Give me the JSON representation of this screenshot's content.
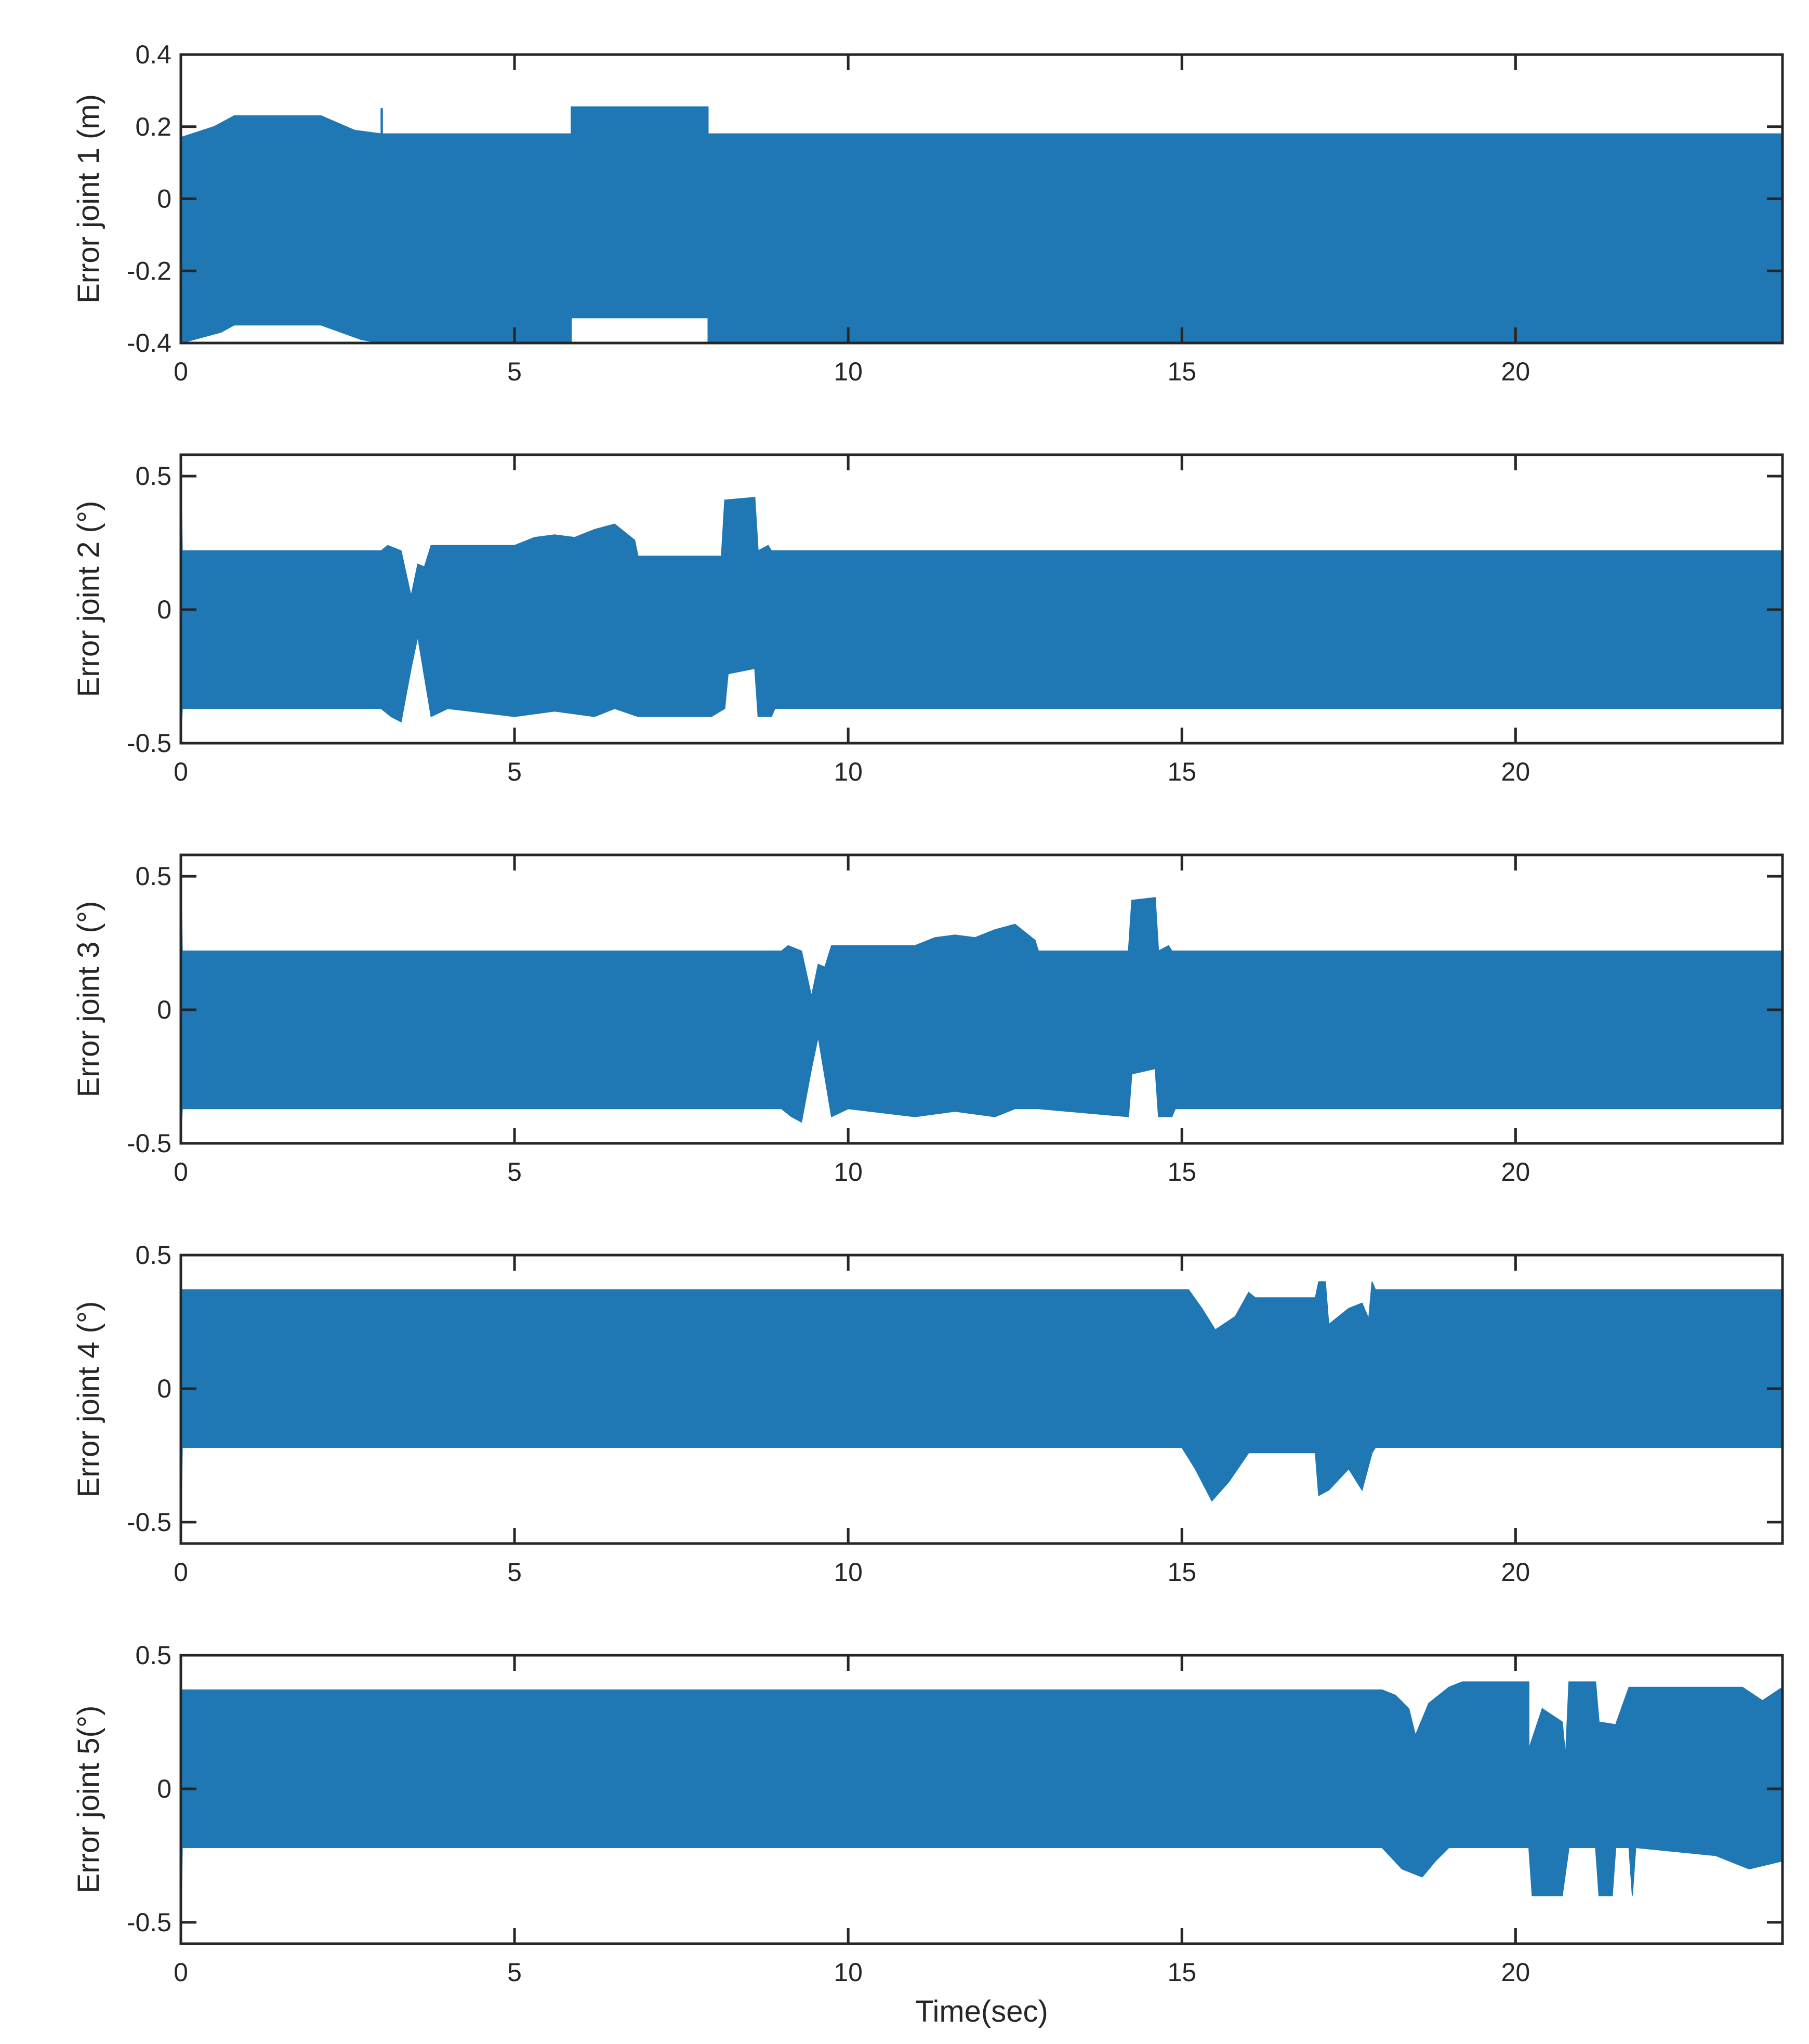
{
  "chart_data": [
    {
      "type": "area",
      "ylabel": "Error joint 1 (m)",
      "xlabel": "",
      "xlim": [
        0,
        24
      ],
      "ylim": [
        -0.4,
        0.4
      ],
      "xticks": [
        0,
        5,
        10,
        15,
        20
      ],
      "yticks": [
        0.4,
        0.2,
        0,
        -0.2,
        -0.4
      ],
      "ytick_labels": [
        "0.4",
        "0.2",
        "0",
        "-0.2",
        "-0.4"
      ],
      "grid": false,
      "color": "#1f77b4",
      "series": [
        {
          "upper": [
            [
              0,
              0.17
            ],
            [
              0.5,
              0.2
            ],
            [
              0.8,
              0.23
            ],
            [
              2.1,
              0.23
            ],
            [
              2.6,
              0.19
            ],
            [
              3.0,
              0.18
            ],
            [
              3.0,
              0.25
            ],
            [
              3.02,
              0.25
            ],
            [
              3.02,
              0.18
            ],
            [
              5.85,
              0.18
            ],
            [
              5.85,
              0.255
            ],
            [
              7.9,
              0.255
            ],
            [
              7.9,
              0.18
            ],
            [
              24,
              0.18
            ]
          ],
          "lower": [
            [
              0,
              -0.4
            ],
            [
              0.6,
              -0.37
            ],
            [
              0.8,
              -0.35
            ],
            [
              2.1,
              -0.35
            ],
            [
              2.7,
              -0.39
            ],
            [
              3.0,
              -0.4
            ],
            [
              5.85,
              -0.4
            ],
            [
              5.85,
              -0.33
            ],
            [
              7.9,
              -0.33
            ],
            [
              7.9,
              -0.4
            ],
            [
              24,
              -0.4
            ]
          ]
        }
      ]
    },
    {
      "type": "area",
      "ylabel": "Error joint 2 (°)",
      "xlabel": "",
      "xlim": [
        0,
        24
      ],
      "ylim": [
        -0.5,
        0.58
      ],
      "xticks": [
        0,
        5,
        10,
        15,
        20
      ],
      "yticks": [
        0.5,
        0,
        -0.5
      ],
      "ytick_labels": [
        "0.5",
        "0",
        "-0.5"
      ],
      "grid": false,
      "color": "#1f77b4",
      "series": [
        {
          "upper": [
            [
              0,
              0.58
            ],
            [
              0.02,
              0.22
            ],
            [
              3.0,
              0.22
            ],
            [
              3.1,
              0.24
            ],
            [
              3.3,
              0.22
            ],
            [
              3.45,
              0.05
            ],
            [
              3.55,
              0.17
            ],
            [
              3.65,
              0.16
            ],
            [
              3.75,
              0.24
            ],
            [
              5.0,
              0.24
            ],
            [
              5.3,
              0.27
            ],
            [
              5.6,
              0.28
            ],
            [
              5.9,
              0.27
            ],
            [
              6.2,
              0.3
            ],
            [
              6.5,
              0.32
            ],
            [
              6.8,
              0.26
            ],
            [
              6.85,
              0.2
            ],
            [
              7.95,
              0.2
            ],
            [
              8.1,
              0.2
            ],
            [
              8.15,
              0.41
            ],
            [
              8.6,
              0.42
            ],
            [
              8.65,
              0.22
            ],
            [
              8.8,
              0.24
            ],
            [
              8.85,
              0.22
            ],
            [
              24,
              0.22
            ]
          ],
          "lower": [
            [
              0,
              -0.5
            ],
            [
              0.02,
              -0.37
            ],
            [
              3.0,
              -0.37
            ],
            [
              3.15,
              -0.4
            ],
            [
              3.3,
              -0.42
            ],
            [
              3.45,
              -0.22
            ],
            [
              3.55,
              -0.1
            ],
            [
              3.65,
              -0.25
            ],
            [
              3.75,
              -0.4
            ],
            [
              4.0,
              -0.37
            ],
            [
              5.0,
              -0.4
            ],
            [
              5.6,
              -0.38
            ],
            [
              6.2,
              -0.4
            ],
            [
              6.5,
              -0.37
            ],
            [
              6.85,
              -0.4
            ],
            [
              7.95,
              -0.4
            ],
            [
              8.15,
              -0.37
            ],
            [
              8.2,
              -0.24
            ],
            [
              8.6,
              -0.22
            ],
            [
              8.65,
              -0.4
            ],
            [
              8.85,
              -0.4
            ],
            [
              8.9,
              -0.37
            ],
            [
              24,
              -0.37
            ]
          ]
        }
      ]
    },
    {
      "type": "area",
      "ylabel": "Error joint 3 (°)",
      "xlabel": "",
      "xlim": [
        0,
        24
      ],
      "ylim": [
        -0.5,
        0.58
      ],
      "xticks": [
        0,
        5,
        10,
        15,
        20
      ],
      "yticks": [
        0.5,
        0,
        -0.5
      ],
      "ytick_labels": [
        "0.5",
        "0",
        "-0.5"
      ],
      "grid": false,
      "color": "#1f77b4",
      "series": [
        {
          "upper": [
            [
              0,
              0.58
            ],
            [
              0.02,
              0.22
            ],
            [
              9.0,
              0.22
            ],
            [
              9.1,
              0.24
            ],
            [
              9.3,
              0.22
            ],
            [
              9.45,
              0.05
            ],
            [
              9.55,
              0.17
            ],
            [
              9.65,
              0.16
            ],
            [
              9.75,
              0.24
            ],
            [
              11.0,
              0.24
            ],
            [
              11.3,
              0.27
            ],
            [
              11.6,
              0.28
            ],
            [
              11.9,
              0.27
            ],
            [
              12.2,
              0.3
            ],
            [
              12.5,
              0.32
            ],
            [
              12.8,
              0.26
            ],
            [
              12.85,
              0.22
            ],
            [
              14.2,
              0.22
            ],
            [
              14.25,
              0.41
            ],
            [
              14.6,
              0.42
            ],
            [
              14.65,
              0.22
            ],
            [
              14.8,
              0.24
            ],
            [
              14.85,
              0.22
            ],
            [
              24,
              0.22
            ]
          ],
          "lower": [
            [
              0,
              -0.5
            ],
            [
              0.02,
              -0.37
            ],
            [
              9.0,
              -0.37
            ],
            [
              9.15,
              -0.4
            ],
            [
              9.3,
              -0.42
            ],
            [
              9.45,
              -0.22
            ],
            [
              9.55,
              -0.1
            ],
            [
              9.65,
              -0.25
            ],
            [
              9.75,
              -0.4
            ],
            [
              10.0,
              -0.37
            ],
            [
              11.0,
              -0.4
            ],
            [
              11.6,
              -0.38
            ],
            [
              12.2,
              -0.4
            ],
            [
              12.5,
              -0.37
            ],
            [
              12.85,
              -0.37
            ],
            [
              14.2,
              -0.4
            ],
            [
              14.25,
              -0.24
            ],
            [
              14.6,
              -0.22
            ],
            [
              14.65,
              -0.4
            ],
            [
              14.85,
              -0.4
            ],
            [
              14.9,
              -0.37
            ],
            [
              24,
              -0.37
            ]
          ]
        }
      ]
    },
    {
      "type": "area",
      "ylabel": "Error joint 4 (°)",
      "xlabel": "",
      "xlim": [
        0,
        24
      ],
      "ylim": [
        -0.58,
        0.5
      ],
      "xticks": [
        0,
        5,
        10,
        15,
        20
      ],
      "yticks": [
        0.5,
        0,
        -0.5
      ],
      "ytick_labels": [
        "0.5",
        "0",
        "-0.5"
      ],
      "grid": false,
      "color": "#1f77b4",
      "series": [
        {
          "upper": [
            [
              0,
              0.37
            ],
            [
              15.0,
              0.37
            ],
            [
              15.1,
              0.37
            ],
            [
              15.3,
              0.3
            ],
            [
              15.5,
              0.22
            ],
            [
              15.8,
              0.27
            ],
            [
              16.0,
              0.36
            ],
            [
              16.1,
              0.34
            ],
            [
              17.0,
              0.34
            ],
            [
              17.05,
              0.4
            ],
            [
              17.15,
              0.4
            ],
            [
              17.2,
              0.24
            ],
            [
              17.5,
              0.3
            ],
            [
              17.7,
              0.32
            ],
            [
              17.8,
              0.26
            ],
            [
              17.85,
              0.4
            ],
            [
              17.9,
              0.37
            ],
            [
              24,
              0.37
            ]
          ],
          "lower": [
            [
              0,
              -0.58
            ],
            [
              0.02,
              -0.22
            ],
            [
              15.0,
              -0.22
            ],
            [
              15.2,
              -0.3
            ],
            [
              15.45,
              -0.42
            ],
            [
              15.7,
              -0.35
            ],
            [
              16.0,
              -0.24
            ],
            [
              17.0,
              -0.24
            ],
            [
              17.05,
              -0.4
            ],
            [
              17.2,
              -0.38
            ],
            [
              17.5,
              -0.3
            ],
            [
              17.7,
              -0.38
            ],
            [
              17.85,
              -0.24
            ],
            [
              17.9,
              -0.22
            ],
            [
              24,
              -0.22
            ]
          ]
        }
      ]
    },
    {
      "type": "area",
      "ylabel": "Error joint 5(°)",
      "xlabel": "Time(sec)",
      "xlim": [
        0,
        24
      ],
      "ylim": [
        -0.58,
        0.5
      ],
      "xticks": [
        0,
        5,
        10,
        15,
        20
      ],
      "yticks": [
        0.5,
        0,
        -0.5
      ],
      "ytick_labels": [
        "0.5",
        "0",
        "-0.5"
      ],
      "grid": false,
      "color": "#1f77b4",
      "series": [
        {
          "upper": [
            [
              0,
              0.37
            ],
            [
              18.0,
              0.37
            ],
            [
              18.2,
              0.35
            ],
            [
              18.4,
              0.3
            ],
            [
              18.5,
              0.2
            ],
            [
              18.7,
              0.32
            ],
            [
              19.0,
              0.38
            ],
            [
              19.2,
              0.4
            ],
            [
              20.2,
              0.4
            ],
            [
              20.2,
              0.15
            ],
            [
              20.4,
              0.3
            ],
            [
              20.7,
              0.25
            ],
            [
              20.75,
              0.12
            ],
            [
              20.8,
              0.4
            ],
            [
              21.2,
              0.4
            ],
            [
              21.25,
              0.25
            ],
            [
              21.5,
              0.24
            ],
            [
              21.7,
              0.38
            ],
            [
              21.75,
              0.38
            ],
            [
              21.8,
              0.38
            ],
            [
              23.4,
              0.38
            ],
            [
              23.7,
              0.33
            ],
            [
              24,
              0.38
            ]
          ],
          "lower": [
            [
              0,
              -0.58
            ],
            [
              0.02,
              -0.22
            ],
            [
              18.0,
              -0.22
            ],
            [
              18.3,
              -0.3
            ],
            [
              18.6,
              -0.33
            ],
            [
              18.8,
              -0.27
            ],
            [
              19.0,
              -0.22
            ],
            [
              20.2,
              -0.22
            ],
            [
              20.25,
              -0.4
            ],
            [
              20.7,
              -0.4
            ],
            [
              20.8,
              -0.22
            ],
            [
              21.2,
              -0.22
            ],
            [
              21.25,
              -0.4
            ],
            [
              21.45,
              -0.4
            ],
            [
              21.5,
              -0.22
            ],
            [
              21.7,
              -0.22
            ],
            [
              21.75,
              -0.4
            ],
            [
              21.8,
              -0.22
            ],
            [
              23.0,
              -0.25
            ],
            [
              23.5,
              -0.3
            ],
            [
              24,
              -0.27
            ]
          ]
        }
      ]
    }
  ]
}
